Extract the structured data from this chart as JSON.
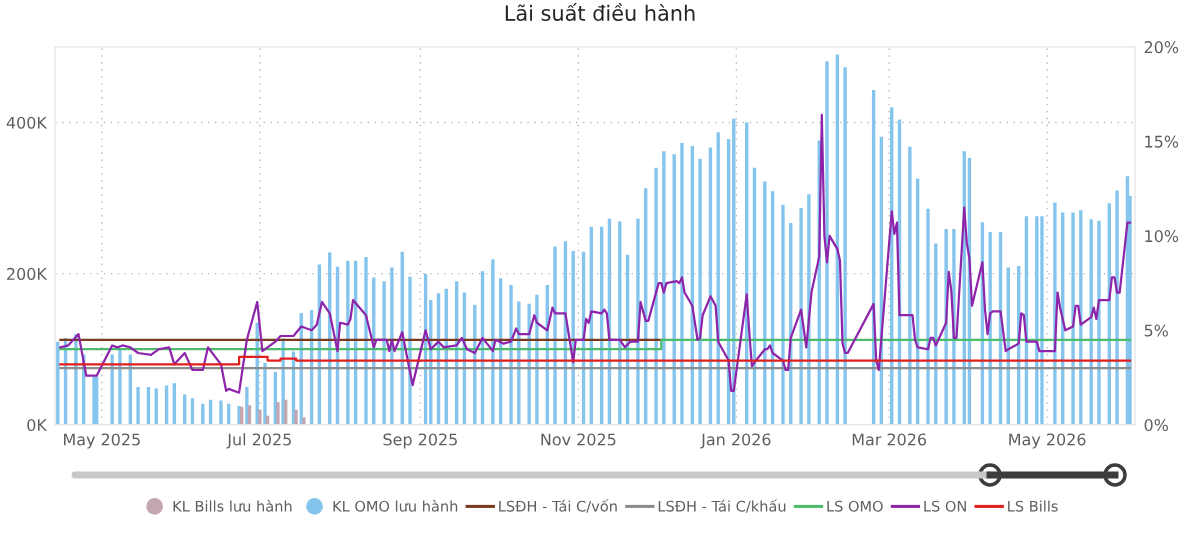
{
  "chart_data": {
    "type": "bar",
    "title": "Lãi suất điều hành",
    "xlim": [
      "2025-04-13",
      "2026-06-04"
    ],
    "xticks": [
      {
        "value": "2025-05-01",
        "label": "May 2025"
      },
      {
        "value": "2025-07-01",
        "label": "Jul 2025"
      },
      {
        "value": "2025-09-01",
        "label": "Sep 2025"
      },
      {
        "value": "2025-11-01",
        "label": "Nov 2025"
      },
      {
        "value": "2026-01-01",
        "label": "Jan 2026"
      },
      {
        "value": "2026-03-01",
        "label": "Mar 2026"
      },
      {
        "value": "2026-05-01",
        "label": "May 2026"
      }
    ],
    "ylim": [
      0,
      500
    ],
    "yticks": [
      {
        "value": 0,
        "label": "0K"
      },
      {
        "value": 200,
        "label": "200K"
      },
      {
        "value": 400,
        "label": "400K"
      }
    ],
    "y2lim": [
      0,
      20
    ],
    "y2ticks": [
      {
        "value": 0,
        "label": "0%"
      },
      {
        "value": 5,
        "label": "5%"
      },
      {
        "value": 10,
        "label": "10%"
      },
      {
        "value": 15,
        "label": "15%"
      },
      {
        "value": 20,
        "label": "20%"
      }
    ],
    "grid": true,
    "legend": "bottom",
    "series": [
      {
        "name": "KL Bills lưu hành",
        "color": "#c3a7b0",
        "x": [
          "2025-06-24",
          "2025-06-27",
          "2025-07-01",
          "2025-07-04",
          "2025-07-08",
          "2025-07-11",
          "2025-07-15",
          "2025-07-18"
        ],
        "values": [
          24,
          26,
          20,
          12,
          30,
          33,
          20,
          10
        ]
      },
      {
        "name": "KL OMO lưu hành",
        "color": "#85c4ec",
        "x": [
          "2025-04-14",
          "2025-04-17",
          "2025-04-21",
          "2025-04-24",
          "2025-04-28",
          "2025-04-29",
          "2025-05-05",
          "2025-05-08",
          "2025-05-12",
          "2025-05-15",
          "2025-05-19",
          "2025-05-22",
          "2025-05-26",
          "2025-05-29",
          "2025-06-02",
          "2025-06-05",
          "2025-06-09",
          "2025-06-12",
          "2025-06-16",
          "2025-06-19",
          "2025-06-23",
          "2025-06-26",
          "2025-06-30",
          "2025-07-03",
          "2025-07-07",
          "2025-07-10",
          "2025-07-14",
          "2025-07-17",
          "2025-07-21",
          "2025-07-24",
          "2025-07-28",
          "2025-07-31",
          "2025-08-04",
          "2025-08-07",
          "2025-08-11",
          "2025-08-14",
          "2025-08-18",
          "2025-08-21",
          "2025-08-25",
          "2025-08-28",
          "2025-09-03",
          "2025-09-05",
          "2025-09-08",
          "2025-09-11",
          "2025-09-15",
          "2025-09-18",
          "2025-09-22",
          "2025-09-25",
          "2025-09-29",
          "2025-10-02",
          "2025-10-06",
          "2025-10-09",
          "2025-10-13",
          "2025-10-16",
          "2025-10-20",
          "2025-10-23",
          "2025-10-27",
          "2025-10-30",
          "2025-11-03",
          "2025-11-06",
          "2025-11-10",
          "2025-11-13",
          "2025-11-17",
          "2025-11-20",
          "2025-11-24",
          "2025-11-27",
          "2025-12-01",
          "2025-12-04",
          "2025-12-08",
          "2025-12-11",
          "2025-12-15",
          "2025-12-18",
          "2025-12-22",
          "2025-12-25",
          "2025-12-29",
          "2025-12-31",
          "2026-01-05",
          "2026-01-08",
          "2026-01-12",
          "2026-01-15",
          "2026-01-19",
          "2026-01-22",
          "2026-01-26",
          "2026-01-29",
          "2026-02-02",
          "2026-02-05",
          "2026-02-09",
          "2026-02-12",
          "2026-02-23",
          "2026-02-26",
          "2026-03-02",
          "2026-03-05",
          "2026-03-09",
          "2026-03-12",
          "2026-03-16",
          "2026-03-19",
          "2026-03-23",
          "2026-03-26",
          "2026-03-30",
          "2026-04-01",
          "2026-04-06",
          "2026-04-09",
          "2026-04-13",
          "2026-04-16",
          "2026-04-20",
          "2026-04-23",
          "2026-04-27",
          "2026-04-29",
          "2026-05-04",
          "2026-05-07",
          "2026-05-11",
          "2026-05-14",
          "2026-05-18",
          "2026-05-21",
          "2026-05-25",
          "2026-05-28",
          "2026-06-01",
          "2026-06-02"
        ],
        "values": [
          110,
          115,
          120,
          93,
          64,
          64,
          93,
          100,
          93,
          50,
          50,
          48,
          52,
          55,
          40,
          35,
          28,
          33,
          32,
          28,
          25,
          50,
          135,
          82,
          70,
          114,
          97,
          148,
          152,
          212,
          228,
          209,
          217,
          217,
          222,
          195,
          190,
          208,
          229,
          196,
          200,
          165,
          174,
          180,
          190,
          175,
          159,
          203,
          219,
          194,
          185,
          163,
          160,
          172,
          185,
          236,
          243,
          230,
          229,
          262,
          262,
          273,
          269,
          225,
          273,
          313,
          340,
          362,
          358,
          373,
          369,
          352,
          367,
          387,
          378,
          405,
          400,
          340,
          322,
          309,
          291,
          267,
          287,
          305,
          376,
          481,
          490,
          473,
          443,
          381,
          420,
          404,
          368,
          326,
          286,
          240,
          259,
          259,
          362,
          353,
          268,
          255,
          255,
          208,
          210,
          276,
          276,
          276,
          294,
          281,
          281,
          284,
          272,
          270,
          293,
          310,
          329,
          303
        ]
      },
      {
        "name": "LSĐH - Tái C/vốn",
        "type": "line",
        "axis": "y2",
        "color": "#7a3a1e",
        "x": [
          "2025-04-15",
          "2025-12-03"
        ],
        "values": [
          4.5,
          4.5
        ]
      },
      {
        "name": "LSĐH - Tái C/khấu",
        "type": "line",
        "axis": "y2",
        "color": "#8c8c8c",
        "x": [
          "2025-04-15",
          "2026-06-02"
        ],
        "values": [
          3.0,
          3.0
        ]
      },
      {
        "name": "LS OMO",
        "type": "step",
        "axis": "y2",
        "color": "#4cbb6c",
        "x": [
          "2025-04-15",
          "2025-12-03",
          "2026-06-02"
        ],
        "values": [
          4.0,
          4.5,
          4.5
        ]
      },
      {
        "name": "LS ON",
        "type": "line",
        "axis": "y2",
        "color": "#8e24aa",
        "x": [
          "2025-04-15",
          "2025-04-18",
          "2025-04-22",
          "2025-04-25",
          "2025-04-29",
          "2025-05-05",
          "2025-05-07",
          "2025-05-09",
          "2025-05-12",
          "2025-05-15",
          "2025-05-20",
          "2025-05-23",
          "2025-05-27",
          "2025-05-29",
          "2025-06-02",
          "2025-06-04",
          "2025-06-05",
          "2025-06-09",
          "2025-06-11",
          "2025-06-16",
          "2025-06-18",
          "2025-06-19",
          "2025-06-23",
          "2025-06-26",
          "2025-06-30",
          "2025-07-02",
          "2025-07-04",
          "2025-07-07",
          "2025-07-09",
          "2025-07-14",
          "2025-07-17",
          "2025-07-21",
          "2025-07-23",
          "2025-07-25",
          "2025-07-28",
          "2025-07-31",
          "2025-08-01",
          "2025-08-04",
          "2025-08-05",
          "2025-08-06",
          "2025-08-11",
          "2025-08-14",
          "2025-08-15",
          "2025-08-19",
          "2025-08-20",
          "2025-08-21",
          "2025-08-22",
          "2025-08-25",
          "2025-08-27",
          "2025-08-29",
          "2025-09-03",
          "2025-09-05",
          "2025-09-08",
          "2025-09-10",
          "2025-09-15",
          "2025-09-17",
          "2025-09-19",
          "2025-09-22",
          "2025-09-25",
          "2025-09-29",
          "2025-09-30",
          "2025-10-03",
          "2025-10-06",
          "2025-10-08",
          "2025-10-09",
          "2025-10-13",
          "2025-10-15",
          "2025-10-16",
          "2025-10-20",
          "2025-10-22",
          "2025-10-23",
          "2025-10-27",
          "2025-10-30",
          "2025-10-31",
          "2025-11-03",
          "2025-11-04",
          "2025-11-05",
          "2025-11-06",
          "2025-11-10",
          "2025-11-11",
          "2025-11-12",
          "2025-11-13",
          "2025-11-17",
          "2025-11-19",
          "2025-11-21",
          "2025-11-24",
          "2025-11-25",
          "2025-11-27",
          "2025-11-28",
          "2025-12-02",
          "2025-12-03",
          "2025-12-04",
          "2025-12-05",
          "2025-12-09",
          "2025-12-10",
          "2025-12-11",
          "2025-12-12",
          "2025-12-15",
          "2025-12-17",
          "2025-12-18",
          "2025-12-19",
          "2025-12-22",
          "2025-12-24",
          "2025-12-25",
          "2025-12-29",
          "2025-12-30",
          "2025-12-31",
          "2026-01-05",
          "2026-01-06",
          "2026-01-07",
          "2026-01-08",
          "2026-01-12",
          "2026-01-13",
          "2026-01-14",
          "2026-01-15",
          "2026-01-19",
          "2026-01-20",
          "2026-01-21",
          "2026-01-22",
          "2026-01-26",
          "2026-01-28",
          "2026-01-30",
          "2026-02-02",
          "2026-02-03",
          "2026-02-04",
          "2026-02-05",
          "2026-02-06",
          "2026-02-09",
          "2026-02-10",
          "2026-02-11",
          "2026-02-12",
          "2026-02-13",
          "2026-02-23",
          "2026-02-24",
          "2026-02-25",
          "2026-03-02",
          "2026-03-03",
          "2026-03-04",
          "2026-03-05",
          "2026-03-10",
          "2026-03-11",
          "2026-03-12",
          "2026-03-16",
          "2026-03-17",
          "2026-03-18",
          "2026-03-19",
          "2026-03-23",
          "2026-03-24",
          "2026-03-25",
          "2026-03-26",
          "2026-03-27",
          "2026-03-30",
          "2026-03-31",
          "2026-04-01",
          "2026-04-02",
          "2026-04-06",
          "2026-04-07",
          "2026-04-08",
          "2026-04-09",
          "2026-04-10",
          "2026-04-13",
          "2026-04-15",
          "2026-04-16",
          "2026-04-20",
          "2026-04-21",
          "2026-04-22",
          "2026-04-23",
          "2026-04-27",
          "2026-04-28",
          "2026-05-04",
          "2026-05-05",
          "2026-05-06",
          "2026-05-08",
          "2026-05-11",
          "2026-05-12",
          "2026-05-13",
          "2026-05-14",
          "2026-05-18",
          "2026-05-19",
          "2026-05-20",
          "2026-05-21",
          "2026-05-25",
          "2026-05-26",
          "2026-05-27",
          "2026-05-28",
          "2026-05-29",
          "2026-06-01",
          "2026-06-02"
        ],
        "values": [
          4.1,
          4.2,
          4.8,
          2.6,
          2.6,
          4.2,
          4.1,
          4.2,
          4.1,
          3.8,
          3.7,
          4.0,
          4.1,
          3.2,
          3.8,
          3.2,
          2.9,
          2.9,
          4.1,
          3.2,
          1.8,
          1.9,
          1.7,
          4.5,
          6.5,
          3.9,
          4.1,
          4.4,
          4.7,
          4.7,
          5.2,
          5.0,
          5.3,
          6.5,
          5.9,
          3.9,
          5.4,
          5.3,
          5.6,
          6.6,
          5.8,
          4.1,
          4.5,
          4.5,
          3.9,
          4.5,
          3.9,
          4.9,
          3.5,
          2.1,
          5.0,
          4.0,
          4.4,
          4.1,
          4.2,
          4.6,
          4.0,
          3.8,
          4.6,
          3.9,
          4.5,
          4.3,
          4.4,
          5.1,
          4.8,
          4.8,
          5.8,
          5.4,
          5.0,
          6.2,
          5.9,
          5.9,
          3.3,
          4.5,
          4.5,
          5.6,
          5.4,
          6.0,
          5.9,
          6.1,
          5.9,
          4.5,
          4.5,
          4.1,
          4.4,
          4.4,
          6.5,
          5.5,
          5.5,
          7.5,
          7.5,
          7.0,
          7.5,
          7.6,
          7.5,
          7.8,
          7.0,
          6.3,
          4.5,
          4.6,
          5.8,
          6.8,
          6.3,
          4.4,
          3.4,
          1.8,
          1.8,
          6.9,
          4.9,
          3.1,
          3.3,
          4.0,
          4.0,
          4.2,
          3.8,
          3.4,
          2.9,
          2.9,
          4.6,
          6.1,
          4.1,
          7.0,
          8.9,
          16.4,
          10.0,
          8.6,
          10.0,
          9.3,
          8.7,
          4.3,
          3.8,
          3.8,
          6.4,
          3.4,
          2.9,
          11.3,
          10.1,
          10.7,
          5.8,
          5.8,
          4.5,
          4.1,
          4.0,
          4.6,
          4.6,
          4.2,
          5.4,
          8.1,
          7.1,
          4.6,
          4.6,
          11.5,
          9.6,
          8.8,
          6.3,
          8.6,
          6.1,
          4.8,
          5.9,
          6.0,
          6.0,
          3.9,
          4.0,
          4.3,
          5.9,
          5.8,
          4.4,
          4.4,
          3.9,
          3.9,
          7.0,
          6.2,
          5.0,
          5.2,
          6.3,
          6.3,
          5.3,
          5.7,
          6.2,
          5.6,
          6.6,
          6.6,
          7.8,
          7.8,
          7.0,
          7.0,
          10.7,
          10.7
        ]
      },
      {
        "name": "LS Bills",
        "type": "step",
        "axis": "y2",
        "color": "#e01e1e",
        "x": [
          "2025-04-15",
          "2025-06-23",
          "2025-07-04",
          "2025-07-09",
          "2025-07-15",
          "2026-06-02"
        ],
        "values": [
          3.2,
          3.6,
          3.4,
          3.5,
          3.4,
          3.4
        ]
      }
    ]
  }
}
